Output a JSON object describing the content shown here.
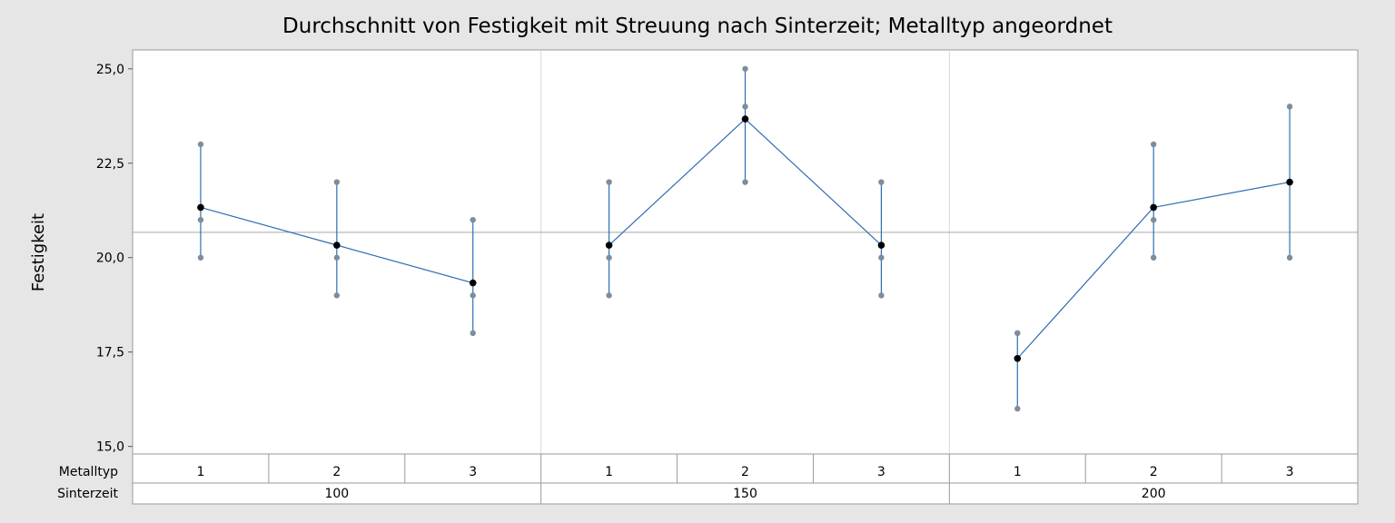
{
  "chart_data": {
    "type": "line",
    "title": "Durchschnitt von Festigkeit mit Streuung nach Sinterzeit; Metalltyp angeordnet",
    "ylabel": "Festigkeit",
    "ylim": [
      14.8,
      25.5
    ],
    "yticks": [
      "15,0",
      "17,5",
      "20,0",
      "22,5",
      "25,0"
    ],
    "ytick_values": [
      15.0,
      17.5,
      20.0,
      22.5,
      25.0
    ],
    "reference_line": 20.67,
    "grid": false,
    "colors": {
      "line": "#2e6db5",
      "mean": "#000000",
      "point": "#7f8c9a",
      "reference": "#a6a6a6"
    },
    "table_rows": [
      {
        "label": "Metalltyp",
        "values": [
          "1",
          "2",
          "3",
          "1",
          "2",
          "3",
          "1",
          "2",
          "3"
        ]
      },
      {
        "label": "Sinterzeit",
        "values": [
          "100",
          "150",
          "200"
        ]
      }
    ],
    "groups": [
      {
        "sinterzeit": "100",
        "points": [
          {
            "metalltyp": "1",
            "mean": 21.33,
            "values": [
              20,
              21,
              23
            ]
          },
          {
            "metalltyp": "2",
            "mean": 20.33,
            "values": [
              19,
              20,
              22
            ]
          },
          {
            "metalltyp": "3",
            "mean": 19.33,
            "values": [
              18,
              19,
              21
            ]
          }
        ]
      },
      {
        "sinterzeit": "150",
        "points": [
          {
            "metalltyp": "1",
            "mean": 20.33,
            "values": [
              19,
              20,
              22
            ]
          },
          {
            "metalltyp": "2",
            "mean": 23.67,
            "values": [
              22,
              24,
              25
            ]
          },
          {
            "metalltyp": "3",
            "mean": 20.33,
            "values": [
              19,
              20,
              22
            ]
          }
        ]
      },
      {
        "sinterzeit": "200",
        "points": [
          {
            "metalltyp": "1",
            "mean": 17.33,
            "values": [
              16,
              18,
              18
            ]
          },
          {
            "metalltyp": "2",
            "mean": 21.33,
            "values": [
              20,
              21,
              23
            ]
          },
          {
            "metalltyp": "3",
            "mean": 22.0,
            "values": [
              20,
              22,
              24
            ]
          }
        ]
      }
    ]
  }
}
